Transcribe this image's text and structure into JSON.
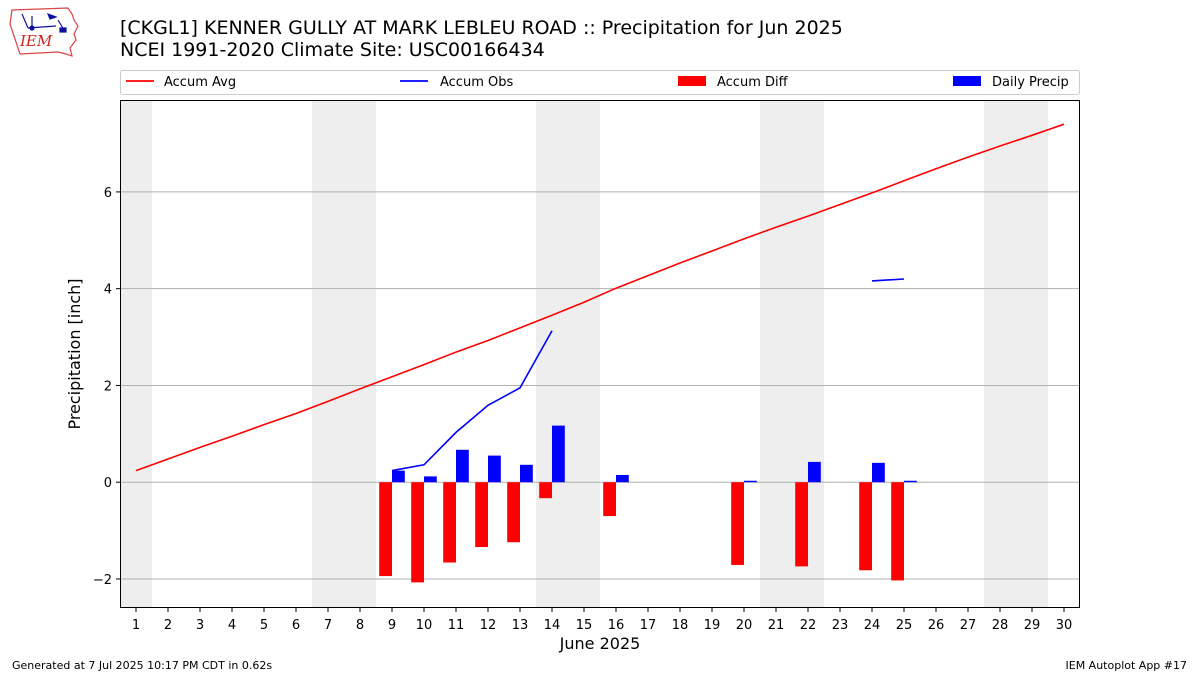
{
  "header": {
    "title_line1": "[CKGL1] KENNER GULLY AT MARK LEBLEU ROAD :: Precipitation for Jun 2025",
    "title_line2": "NCEI 1991-2020 Climate Site: USC00166434"
  },
  "logo": {
    "text": "IEM",
    "icon": "iem-iowa-logo"
  },
  "footer": {
    "left": "Generated at 7 Jul 2025 10:17 PM CDT in 0.62s",
    "right": "IEM Autoplot App #17"
  },
  "chart_data": {
    "type": "bar",
    "xlabel": "June 2025",
    "ylabel": "Precipitation [inch]",
    "ylim": [
      -2.6,
      7.9
    ],
    "xlim": [
      0.5,
      30.5
    ],
    "yticks": [
      -2,
      0,
      2,
      4,
      6
    ],
    "ytick_labels": [
      "−2",
      "0",
      "2",
      "4",
      "6"
    ],
    "xticks": [
      1,
      2,
      3,
      4,
      5,
      6,
      7,
      8,
      9,
      10,
      11,
      12,
      13,
      14,
      15,
      16,
      17,
      18,
      19,
      20,
      21,
      22,
      23,
      24,
      25,
      26,
      27,
      28,
      29,
      30
    ],
    "grid": "horizontal",
    "weekend_shading_days": [
      1,
      7,
      8,
      14,
      15,
      21,
      22,
      28,
      29
    ],
    "legend": {
      "placement": "top",
      "entries": [
        {
          "label": "Accum Avg",
          "kind": "line",
          "color": "#ff0000"
        },
        {
          "label": "Accum Obs",
          "kind": "line",
          "color": "#0000ff"
        },
        {
          "label": "Accum Diff",
          "kind": "bar",
          "color": "#ff0000"
        },
        {
          "label": "Daily Precip",
          "kind": "bar",
          "color": "#0000ff"
        }
      ]
    },
    "series": [
      {
        "name": "Accum Avg",
        "color": "#ff0000",
        "x": [
          1,
          2,
          3,
          4,
          5,
          6,
          7,
          8,
          9,
          10,
          11,
          12,
          13,
          14,
          15,
          16,
          17,
          18,
          19,
          20,
          21,
          22,
          23,
          24,
          25,
          26,
          27,
          28,
          29,
          30
        ],
        "values": [
          0.24,
          0.48,
          0.72,
          0.95,
          1.19,
          1.42,
          1.67,
          1.93,
          2.18,
          2.43,
          2.69,
          2.93,
          3.19,
          3.45,
          3.72,
          4.01,
          4.27,
          4.53,
          4.78,
          5.03,
          5.27,
          5.5,
          5.74,
          5.98,
          6.23,
          6.48,
          6.72,
          6.95,
          7.17,
          7.4
        ]
      },
      {
        "name": "Accum Obs",
        "color": "#0000ff",
        "segments": [
          {
            "x": [
              9,
              10,
              11,
              12,
              13,
              14
            ],
            "values": [
              0.24,
              0.36,
              1.03,
              1.59,
              1.95,
              3.13
            ]
          },
          {
            "x": [
              24,
              25
            ],
            "values": [
              4.16,
              4.2
            ]
          }
        ]
      },
      {
        "name": "Accum Diff",
        "color": "#ff0000",
        "x": [
          9,
          10,
          11,
          12,
          13,
          14,
          16,
          20,
          22,
          24,
          25
        ],
        "values": [
          -1.94,
          -2.07,
          -1.66,
          -1.34,
          -1.24,
          -0.33,
          -0.7,
          -1.71,
          -1.74,
          -1.82,
          -2.03
        ]
      },
      {
        "name": "Daily Precip",
        "color": "#0000ff",
        "x": [
          9,
          10,
          11,
          12,
          13,
          14,
          16,
          20,
          22,
          24,
          25
        ],
        "values": [
          0.24,
          0.12,
          0.67,
          0.55,
          0.36,
          1.17,
          0.15,
          0.03,
          0.42,
          0.4,
          0.03
        ]
      }
    ]
  }
}
